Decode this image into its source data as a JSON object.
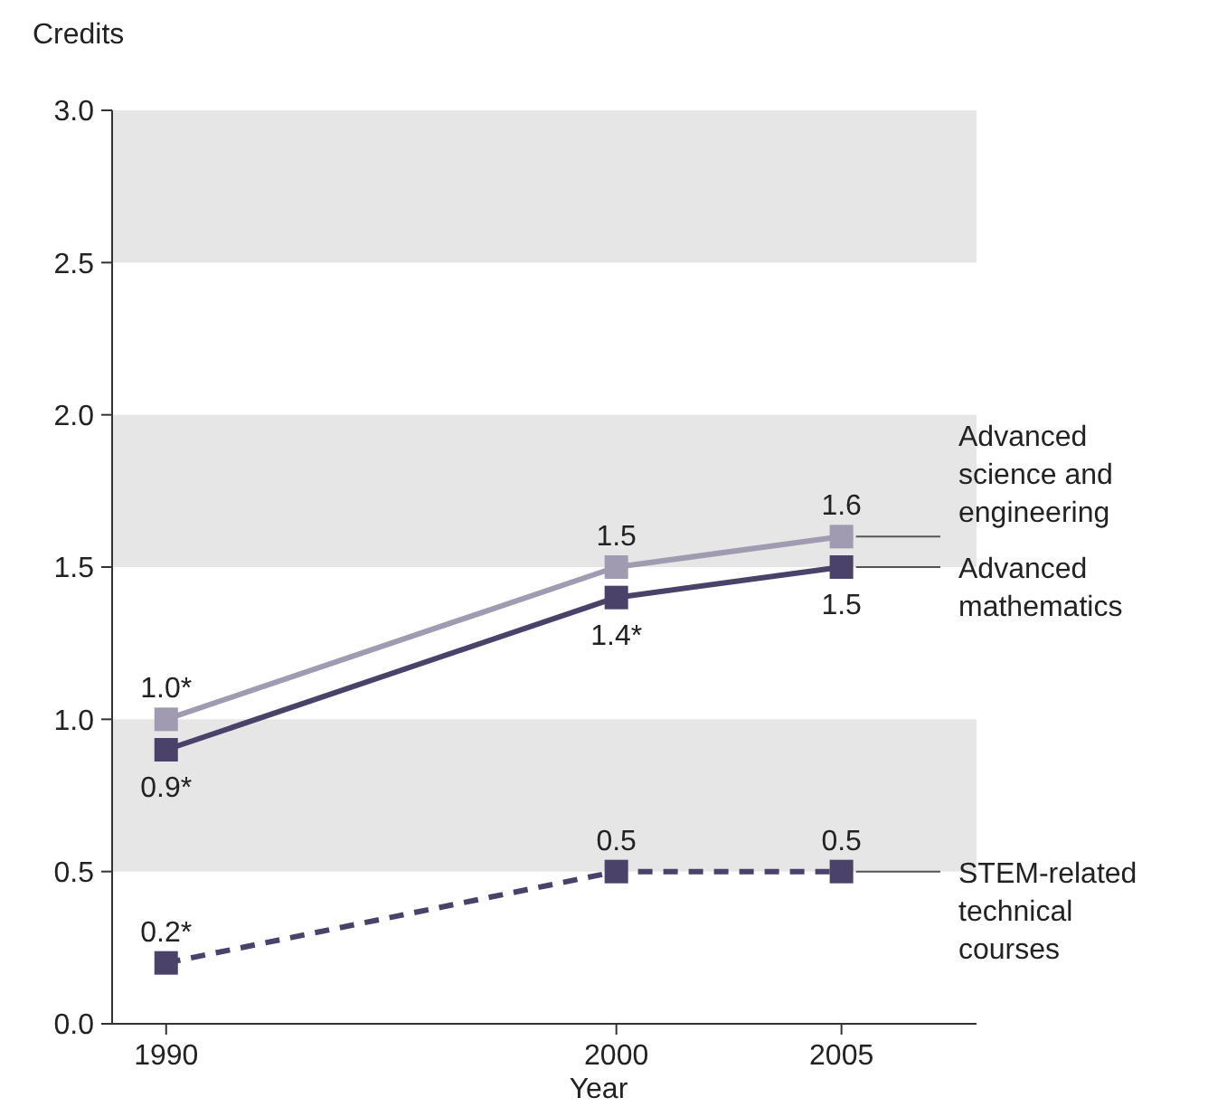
{
  "chart_data": {
    "type": "line",
    "xlabel": "Year",
    "ylabel": "Credits",
    "x": [
      1990,
      2000,
      2005
    ],
    "xlim": [
      1988.8,
      2008
    ],
    "xticks": [
      1990,
      2000,
      2005
    ],
    "ylim": [
      0,
      3
    ],
    "yticks": [
      {
        "value": 0,
        "label": "0.0"
      },
      {
        "value": 0.5,
        "label": "0.5"
      },
      {
        "value": 1,
        "label": "1.0"
      },
      {
        "value": 1.5,
        "label": "1.5"
      },
      {
        "value": 2,
        "label": "2.0"
      },
      {
        "value": 2.5,
        "label": "2.5"
      },
      {
        "value": 3,
        "label": "3.0"
      }
    ],
    "grid": false,
    "marker": "square",
    "bands": [
      {
        "axis": "y",
        "from": 0.5,
        "to": 1,
        "color": "#e6e6e6"
      },
      {
        "axis": "y",
        "from": 1.5,
        "to": 2,
        "color": "#e6e6e6"
      },
      {
        "axis": "y",
        "from": 2.5,
        "to": 3,
        "color": "#e6e6e6"
      }
    ],
    "series": [
      {
        "name": "Advanced science and engineering",
        "color": "#a09bb0",
        "values": [
          1.0,
          1.5,
          1.6
        ],
        "value_labels": [
          "1.0*",
          "1.5",
          "1.6"
        ],
        "line_style": "solid"
      },
      {
        "name": "Advanced mathematics",
        "color": "#4a4269",
        "values": [
          0.9,
          1.4,
          1.5
        ],
        "value_labels": [
          "0.9*",
          "1.4*",
          "1.5"
        ],
        "line_style": "solid"
      },
      {
        "name": "STEM-related technical courses",
        "color": "#4a4269",
        "values": [
          0.2,
          0.5,
          0.5
        ],
        "value_labels": [
          "0.2*",
          "0.5",
          "0.5"
        ],
        "line_style": "dashed"
      }
    ]
  }
}
